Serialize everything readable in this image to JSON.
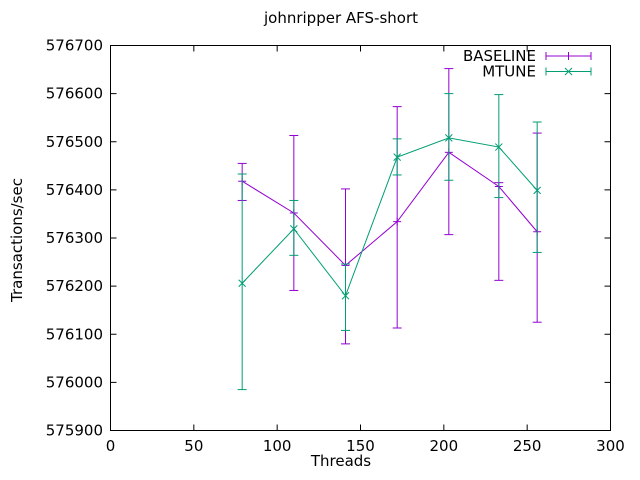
{
  "chart_data": {
    "type": "line",
    "error_bars": true,
    "title": "johnripper AFS-short",
    "xlabel": "Threads",
    "ylabel": "Transactions/sec",
    "xlim": [
      0,
      300
    ],
    "ylim": [
      575900,
      576700
    ],
    "xticks": [
      0,
      50,
      100,
      150,
      200,
      250,
      300
    ],
    "yticks": [
      575900,
      576000,
      576100,
      576200,
      576300,
      576400,
      576500,
      576600,
      576700
    ],
    "grid": false,
    "legend_position": "top-right-inside",
    "x": [
      79,
      110,
      141,
      172,
      203,
      233,
      256
    ],
    "series": [
      {
        "name": "BASELINE",
        "color": "#9400D3",
        "marker": "plus",
        "values": [
          576418,
          576352,
          576243,
          576334,
          576478,
          576407,
          576313
        ],
        "err_low": [
          576378,
          576191,
          576080,
          576113,
          576307,
          576212,
          576125
        ],
        "err_high": [
          576455,
          576513,
          576402,
          576573,
          576652,
          576415,
          576518
        ]
      },
      {
        "name": "MTUNE",
        "color": "#009E73",
        "marker": "cross",
        "values": [
          576206,
          576319,
          576180,
          576468,
          576508,
          576489,
          576399
        ],
        "err_low": [
          575985,
          576264,
          576108,
          576431,
          576420,
          576384,
          576270
        ],
        "err_high": [
          576433,
          576378,
          576246,
          576506,
          576600,
          576598,
          576541
        ]
      }
    ]
  }
}
